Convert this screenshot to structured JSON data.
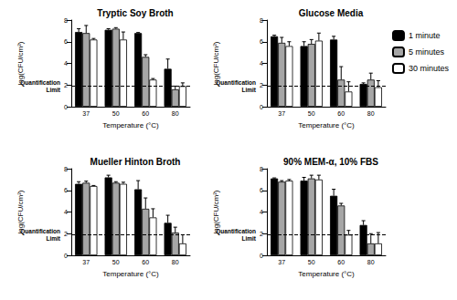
{
  "chart_data": [
    {
      "type": "bar",
      "title": "Tryptic Soy Broth",
      "x_label": "Temperature (°C)",
      "y_label": "log(CFU/cm²)",
      "categories": [
        "37",
        "50",
        "60",
        "80"
      ],
      "ylim": [
        0,
        8
      ],
      "yticks": [
        0,
        2,
        4,
        6,
        8
      ],
      "grid": false,
      "legend": "right",
      "annotation": {
        "text": "Quantification\nLimit",
        "y": 1.9
      },
      "series": [
        {
          "name": "1 minute",
          "color": "#000000",
          "values": [
            6.9,
            7.1,
            6.8,
            3.5
          ],
          "errors": [
            0.3,
            0.1,
            0.05,
            0.9
          ]
        },
        {
          "name": "5 minutes",
          "color": "#a6a6a6",
          "values": [
            6.8,
            7.2,
            4.6,
            1.6
          ],
          "errors": [
            0.7,
            0.1,
            0.2,
            0.3
          ]
        },
        {
          "name": "30 minutes",
          "color": "#ffffff",
          "values": [
            6.2,
            6.2,
            2.5,
            1.9
          ],
          "errors": [
            0.1,
            0.7,
            0.1,
            0.3
          ]
        }
      ]
    },
    {
      "type": "bar",
      "title": "Glucose Media",
      "x_label": "Temperature (°C)",
      "y_label": "log(CFU/cm²)",
      "categories": [
        "37",
        "50",
        "60",
        "80"
      ],
      "ylim": [
        0,
        8
      ],
      "yticks": [
        0,
        2,
        4,
        6,
        8
      ],
      "grid": false,
      "annotation": {
        "text": "Quantification\nLimit",
        "y": 1.9
      },
      "series": [
        {
          "name": "1 minute",
          "color": "#000000",
          "values": [
            6.5,
            5.6,
            6.2,
            2.1
          ],
          "errors": [
            0.1,
            0.4,
            0.3,
            0.1
          ]
        },
        {
          "name": "5 minutes",
          "color": "#a6a6a6",
          "values": [
            5.9,
            5.8,
            2.5,
            2.5
          ],
          "errors": [
            0.5,
            0.4,
            1.2,
            0.6
          ]
        },
        {
          "name": "30 minutes",
          "color": "#ffffff",
          "values": [
            5.6,
            6.1,
            1.4,
            1.8
          ],
          "errors": [
            0.4,
            0.7,
            0.9,
            0.6
          ]
        }
      ]
    },
    {
      "type": "bar",
      "title": "Mueller Hinton Broth",
      "x_label": "Temperature (°C)",
      "y_label": "log(CFU/cm²)",
      "categories": [
        "37",
        "50",
        "60",
        "80"
      ],
      "ylim": [
        0,
        8
      ],
      "yticks": [
        0,
        2,
        4,
        6,
        8
      ],
      "grid": false,
      "annotation": {
        "text": "Quantification\nLimit",
        "y": 1.9
      },
      "series": [
        {
          "name": "1 minute",
          "color": "#000000",
          "values": [
            6.6,
            7.2,
            6.1,
            3.0
          ],
          "errors": [
            0.2,
            0.2,
            0.8,
            0.7
          ]
        },
        {
          "name": "5 minutes",
          "color": "#a6a6a6",
          "values": [
            6.7,
            6.7,
            4.3,
            2.1
          ],
          "errors": [
            0.15,
            0.1,
            1.0,
            0.5
          ]
        },
        {
          "name": "30 minutes",
          "color": "#ffffff",
          "values": [
            6.4,
            6.6,
            3.5,
            1.1
          ],
          "errors": [
            0.05,
            0.15,
            0.8,
            0.8
          ]
        }
      ]
    },
    {
      "type": "bar",
      "title": "90% MEM-α, 10% FBS",
      "x_label": "Temperature (°C)",
      "y_label": "log(CFU/cm²)",
      "categories": [
        "37",
        "50",
        "60",
        "80"
      ],
      "ylim": [
        0,
        8
      ],
      "yticks": [
        0,
        2,
        4,
        6,
        8
      ],
      "grid": false,
      "annotation": {
        "text": "Quantification\nLimit",
        "y": 1.9
      },
      "series": [
        {
          "name": "1 minute",
          "color": "#000000",
          "values": [
            7.1,
            6.9,
            5.5,
            2.8
          ],
          "errors": [
            0.05,
            0.3,
            0.6,
            0.4
          ]
        },
        {
          "name": "5 minutes",
          "color": "#a6a6a6",
          "values": [
            6.8,
            7.1,
            4.6,
            1.1
          ],
          "errors": [
            0.1,
            0.3,
            0.2,
            0.9
          ]
        },
        {
          "name": "30 minutes",
          "color": "#ffffff",
          "values": [
            6.9,
            7.0,
            1.9,
            1.1
          ],
          "errors": [
            0.1,
            0.4,
            0.4,
            1.0
          ]
        }
      ]
    }
  ]
}
